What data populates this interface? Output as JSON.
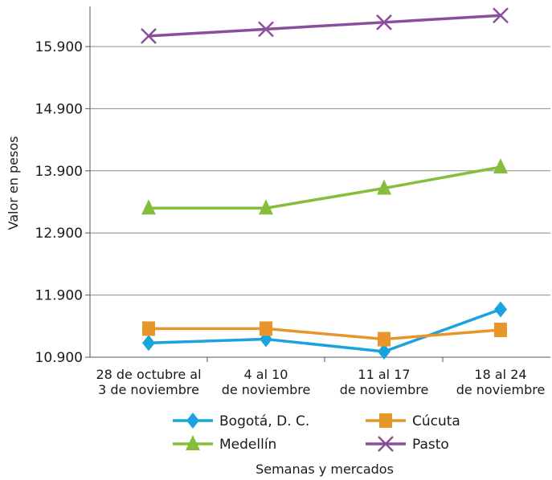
{
  "chart_data": {
    "type": "line",
    "title": "",
    "xlabel": "Semanas y mercados",
    "ylabel": "Valor en pesos",
    "categories": [
      [
        "28 de octubre al",
        "3 de noviembre"
      ],
      [
        "4 al 10",
        "de noviembre"
      ],
      [
        "11 al 17",
        "de noviembre"
      ],
      [
        "18 al 24",
        "de noviembre"
      ]
    ],
    "yticks": [
      "10.900",
      "11.900",
      "12.900",
      "13.900",
      "14.900",
      "15.900"
    ],
    "ylim": [
      10900,
      16500
    ],
    "grid": "horizontal",
    "legend_position": "bottom",
    "series": [
      {
        "name": "Bogotá, D. C.",
        "color": "#1aa3dd",
        "marker": "diamond",
        "values": [
          11130,
          11190,
          10990,
          11670
        ]
      },
      {
        "name": "Cúcuta",
        "color": "#e8952c",
        "marker": "square",
        "values": [
          11360,
          11360,
          11190,
          11340
        ]
      },
      {
        "name": "Medellín",
        "color": "#86bd3c",
        "marker": "triangle",
        "values": [
          13300,
          13300,
          13620,
          13960
        ]
      },
      {
        "name": "Pasto",
        "color": "#8b4e9c",
        "marker": "x",
        "values": [
          16070,
          16180,
          16290,
          16400
        ]
      }
    ]
  }
}
